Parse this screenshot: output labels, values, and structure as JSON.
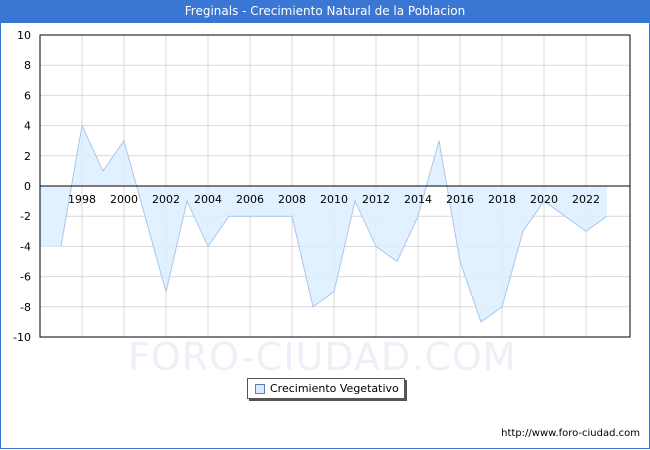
{
  "header": {
    "title": "Freginals - Crecimiento Natural de la Poblacion"
  },
  "legend": {
    "label": "Crecimiento Vegetativo"
  },
  "footer": {
    "url": "http://www.foro-ciudad.com"
  },
  "watermark": "FORO-CIUDAD.COM",
  "colors": {
    "title_bar": "#3a76d4",
    "fill": "#ddeeff",
    "line": "#a9c6ec",
    "grid": "#d9d9d9"
  },
  "chart_data": {
    "type": "area",
    "title": "Freginals - Crecimiento Natural de la Poblacion",
    "xlabel": "",
    "ylabel": "",
    "ylim": [
      -10,
      10
    ],
    "yticks": [
      10,
      8,
      6,
      4,
      2,
      0,
      -2,
      -4,
      -6,
      -8,
      -10
    ],
    "xtick_labels": [
      "1998",
      "2000",
      "2002",
      "2004",
      "2006",
      "2008",
      "2010",
      "2012",
      "2014",
      "2016",
      "2018",
      "2020",
      "2022"
    ],
    "grid": true,
    "legend_position": "bottom",
    "x": [
      1996,
      1997,
      1998,
      1999,
      2000,
      2001,
      2002,
      2003,
      2004,
      2005,
      2006,
      2007,
      2008,
      2009,
      2010,
      2011,
      2012,
      2013,
      2014,
      2015,
      2016,
      2017,
      2018,
      2019,
      2020,
      2021,
      2022,
      2023
    ],
    "series": [
      {
        "name": "Crecimiento Vegetativo",
        "values": [
          -4,
          -4,
          4,
          1,
          3,
          -2,
          -7,
          -1,
          -4,
          -2,
          -2,
          -2,
          -2,
          -8,
          -7,
          -1,
          -4,
          -5,
          -2,
          3,
          -5,
          -9,
          -8,
          -3,
          -1,
          -2,
          -3,
          -2
        ]
      }
    ]
  }
}
